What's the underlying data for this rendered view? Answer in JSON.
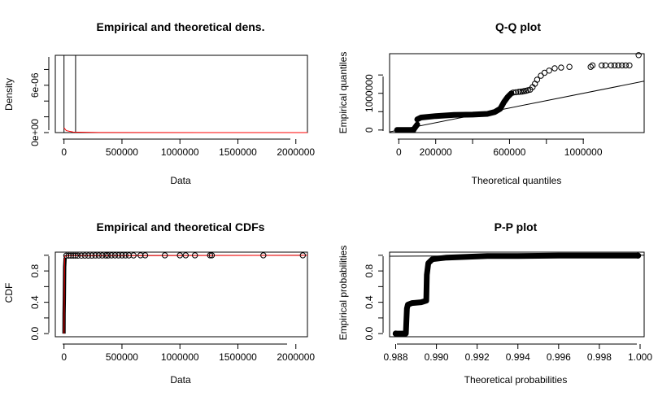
{
  "panels": [
    {
      "id": "density",
      "title": "Empirical and theoretical dens.",
      "xlabel": "Data",
      "ylabel": "Density",
      "xticks": [
        "0",
        "500000",
        "1000000",
        "1500000",
        "2000000"
      ],
      "yticks": [
        "0e+00",
        "6e-06"
      ]
    },
    {
      "id": "qq",
      "title": "Q-Q plot",
      "xlabel": "Theoretical quantiles",
      "ylabel": "Empirical quantiles",
      "xticks": [
        "0",
        "200000",
        "600000",
        "1000000"
      ],
      "yticks": [
        "0",
        "1000000"
      ]
    },
    {
      "id": "cdf",
      "title": "Empirical and theoretical CDFs",
      "xlabel": "Data",
      "ylabel": "CDF",
      "xticks": [
        "0",
        "500000",
        "1000000",
        "1500000",
        "2000000"
      ],
      "yticks": [
        "0.0",
        "0.4",
        "0.8"
      ]
    },
    {
      "id": "pp",
      "title": "P-P plot",
      "xlabel": "Theoretical probabilities",
      "ylabel": "Empirical probabilities",
      "xticks": [
        "0.988",
        "0.990",
        "0.992",
        "0.994",
        "0.996",
        "0.998",
        "1.000"
      ],
      "yticks": [
        "0.0",
        "0.4",
        "0.8"
      ]
    }
  ],
  "chart_data": [
    {
      "type": "bar",
      "title": "Empirical and theoretical dens.",
      "xlabel": "Data",
      "ylabel": "Density",
      "xlim": [
        -75000,
        2100000
      ],
      "ylim": [
        0,
        9.8e-06
      ],
      "histogram": [
        {
          "x0": 0,
          "x1": 100000,
          "density": 9.8e-06
        }
      ],
      "theoretical_density": [
        [
          0,
          6e-07
        ],
        [
          20000,
          2.5e-07
        ],
        [
          80000,
          6e-08
        ],
        [
          300000,
          1e-08
        ],
        [
          2100000,
          0.0
        ]
      ],
      "colors": {
        "histogram": "#000000",
        "theoretical": "#ff0000"
      }
    },
    {
      "type": "scatter",
      "title": "Q-Q plot",
      "xlabel": "Theoretical quantiles",
      "ylabel": "Empirical quantiles",
      "xlim": [
        -50000,
        1330000
      ],
      "ylim": [
        -70000,
        2080000
      ],
      "reference_line": [
        [
          -50000,
          -50000
        ],
        [
          1330000,
          1330000
        ]
      ],
      "dense_segments": [
        [
          [
            -10000,
            0
          ],
          [
            80000,
            0
          ]
        ],
        [
          [
            80000,
            10000
          ],
          [
            100000,
            150000
          ]
        ],
        [
          [
            100000,
            290000
          ],
          [
            120000,
            340000
          ],
          [
            200000,
            380000
          ],
          [
            300000,
            410000
          ],
          [
            400000,
            420000
          ],
          [
            480000,
            440000
          ],
          [
            520000,
            490000
          ],
          [
            550000,
            580000
          ],
          [
            570000,
            760000
          ],
          [
            590000,
            900000
          ],
          [
            610000,
            1000000
          ]
        ]
      ],
      "points": [
        [
          620000,
          1020000
        ],
        [
          635000,
          1030000
        ],
        [
          650000,
          1040000
        ],
        [
          660000,
          1045000
        ],
        [
          670000,
          1050000
        ],
        [
          680000,
          1060000
        ],
        [
          690000,
          1070000
        ],
        [
          700000,
          1085000
        ],
        [
          712000,
          1100000
        ],
        [
          725000,
          1170000
        ],
        [
          738000,
          1260000
        ],
        [
          750000,
          1370000
        ],
        [
          770000,
          1480000
        ],
        [
          790000,
          1560000
        ],
        [
          815000,
          1620000
        ],
        [
          845000,
          1680000
        ],
        [
          880000,
          1700000
        ],
        [
          925000,
          1720000
        ],
        [
          1040000,
          1720000
        ],
        [
          1050000,
          1760000
        ],
        [
          1100000,
          1760000
        ],
        [
          1120000,
          1760000
        ],
        [
          1150000,
          1760000
        ],
        [
          1170000,
          1760000
        ],
        [
          1190000,
          1760000
        ],
        [
          1210000,
          1760000
        ],
        [
          1230000,
          1760000
        ],
        [
          1250000,
          1760000
        ],
        [
          1300000,
          2040000
        ]
      ],
      "colors": {
        "points": "#000000",
        "line": "#000000"
      }
    },
    {
      "type": "line",
      "title": "Empirical and theoretical CDFs",
      "xlabel": "Data",
      "ylabel": "CDF",
      "xlim": [
        -75000,
        2100000
      ],
      "ylim": [
        0,
        1
      ],
      "theoretical_cdf": [
        [
          0,
          0.0
        ],
        [
          5000,
          0.985
        ],
        [
          40000,
          0.995
        ],
        [
          2100000,
          1.0
        ]
      ],
      "empirical_steps": [
        [
          0,
          0.0
        ],
        [
          1000,
          0.25
        ],
        [
          3000,
          0.45
        ],
        [
          6000,
          0.85
        ],
        [
          10000,
          0.97
        ]
      ],
      "outlier_points": [
        [
          20000,
          0.995
        ],
        [
          40000,
          0.995
        ],
        [
          60000,
          0.995
        ],
        [
          80000,
          0.995
        ],
        [
          100000,
          0.995
        ],
        [
          120000,
          0.995
        ],
        [
          150000,
          0.995
        ],
        [
          180000,
          0.996
        ],
        [
          210000,
          0.996
        ],
        [
          240000,
          0.996
        ],
        [
          270000,
          0.997
        ],
        [
          300000,
          0.997
        ],
        [
          330000,
          0.997
        ],
        [
          360000,
          0.997
        ],
        [
          380000,
          0.997
        ],
        [
          410000,
          0.998
        ],
        [
          440000,
          0.998
        ],
        [
          470000,
          0.998
        ],
        [
          500000,
          0.998
        ],
        [
          530000,
          0.998
        ],
        [
          560000,
          0.998
        ],
        [
          600000,
          0.998
        ],
        [
          660000,
          0.999
        ],
        [
          700000,
          0.999
        ],
        [
          870000,
          0.999
        ],
        [
          1000000,
          0.999
        ],
        [
          1050000,
          0.999
        ],
        [
          1130000,
          0.999
        ],
        [
          1260000,
          0.999
        ],
        [
          1275000,
          0.999
        ],
        [
          1720000,
          1.0
        ],
        [
          2060000,
          1.0
        ]
      ],
      "colors": {
        "empirical": "#000000",
        "theoretical": "#ff0000"
      }
    },
    {
      "type": "scatter",
      "title": "P-P plot",
      "xlabel": "Theoretical probabilities",
      "ylabel": "Empirical probabilities",
      "xlim": [
        0.9877,
        1.0002
      ],
      "ylim": [
        0,
        1
      ],
      "reference_line": [
        [
          0.9877,
          0.9877
        ],
        [
          1.0002,
          1.0002
        ]
      ],
      "path": [
        [
          0.988,
          0.0
        ],
        [
          0.9885,
          0.0
        ],
        [
          0.98855,
          0.32
        ],
        [
          0.9886,
          0.37
        ],
        [
          0.9888,
          0.39
        ],
        [
          0.98925,
          0.4
        ],
        [
          0.9895,
          0.42
        ],
        [
          0.98953,
          0.75
        ],
        [
          0.9896,
          0.9
        ],
        [
          0.9898,
          0.95
        ],
        [
          0.9905,
          0.97
        ],
        [
          0.9915,
          0.98
        ],
        [
          0.9925,
          0.99
        ],
        [
          0.994,
          0.99
        ],
        [
          0.996,
          0.995
        ],
        [
          0.998,
          0.995
        ],
        [
          0.9999,
          0.995
        ]
      ],
      "colors": {
        "points": "#000000",
        "line": "#000000"
      }
    }
  ]
}
